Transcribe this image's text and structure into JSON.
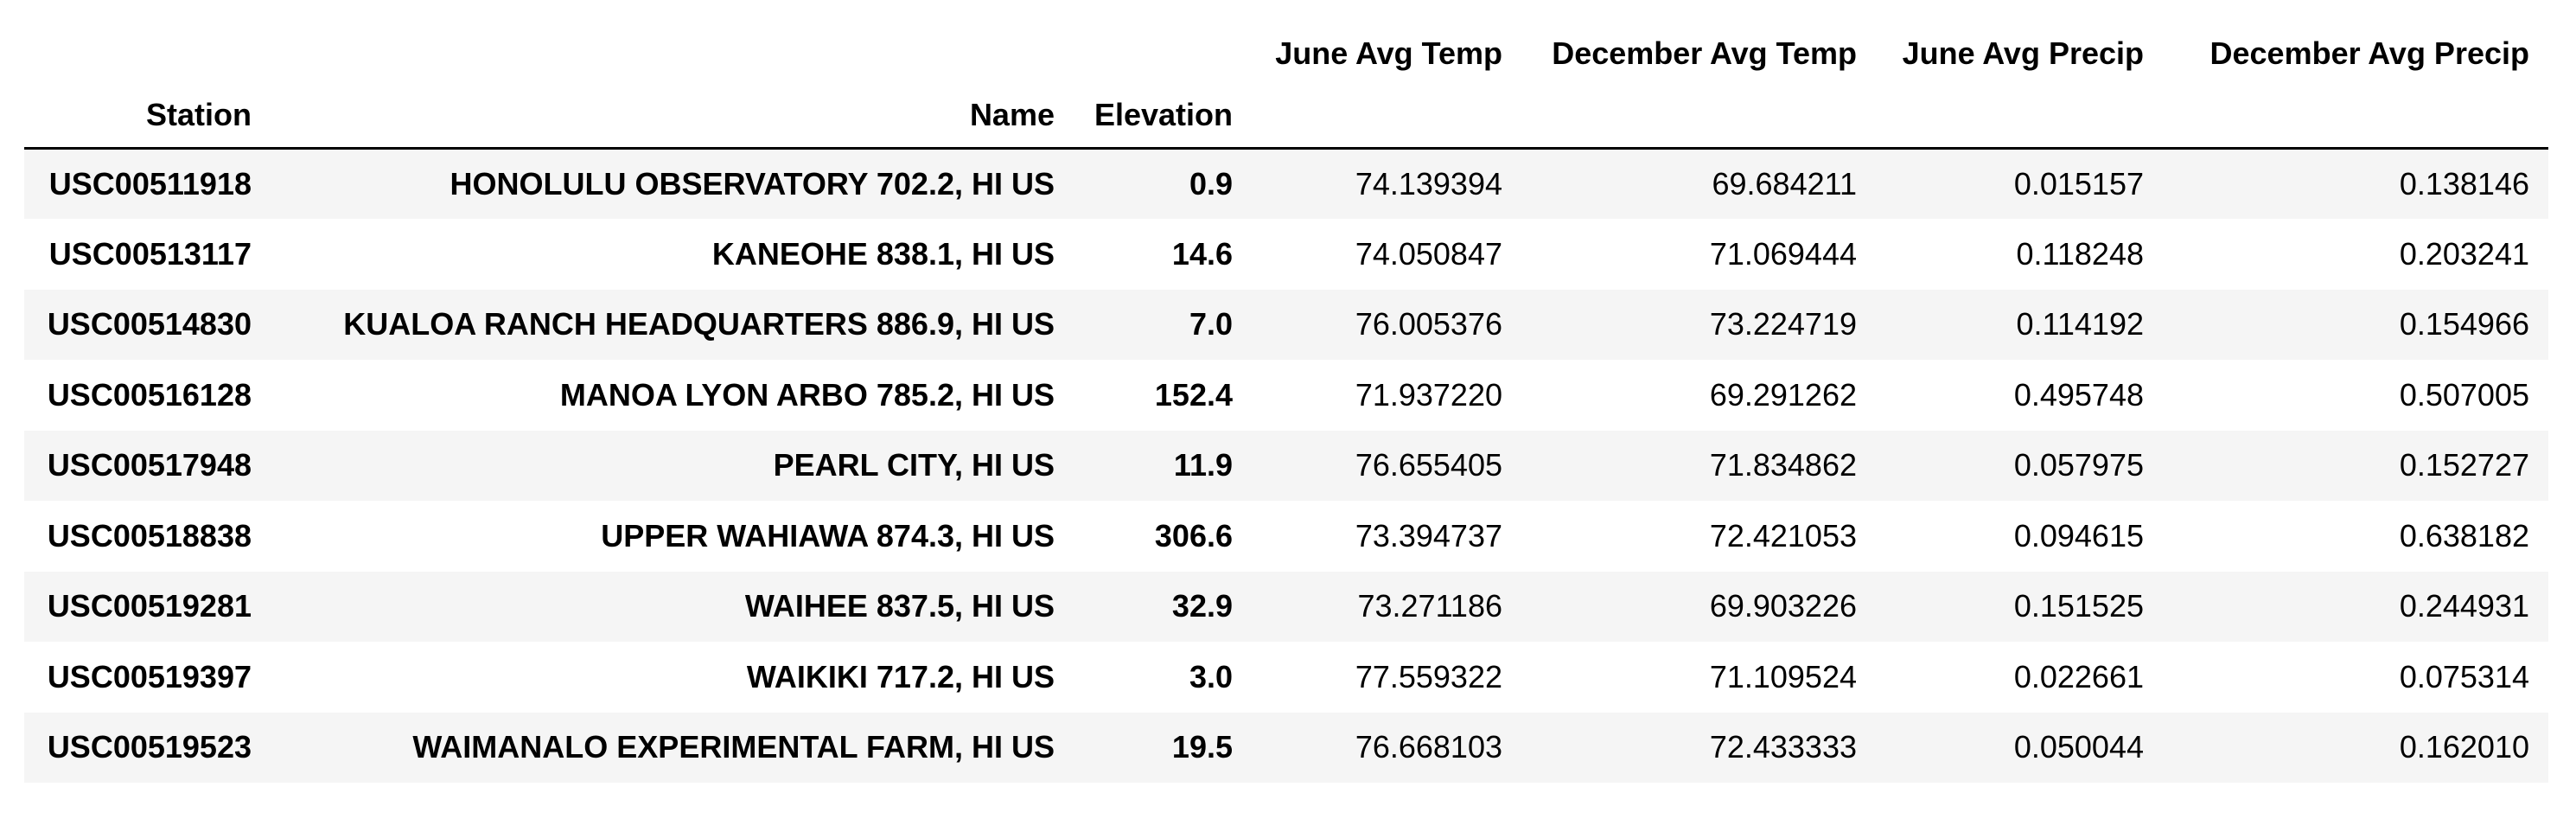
{
  "columns": {
    "top": [
      "June Avg Temp",
      "December Avg Temp",
      "June Avg Precip",
      "December Avg Precip"
    ],
    "index": [
      "Station",
      "Name",
      "Elevation"
    ]
  },
  "rows": [
    {
      "station": "USC00511918",
      "name": "HONOLULU OBSERVATORY 702.2, HI US",
      "elevation": "0.9",
      "june_temp": "74.139394",
      "dec_temp": "69.684211",
      "june_precip": "0.015157",
      "dec_precip": "0.138146"
    },
    {
      "station": "USC00513117",
      "name": "KANEOHE 838.1, HI US",
      "elevation": "14.6",
      "june_temp": "74.050847",
      "dec_temp": "71.069444",
      "june_precip": "0.118248",
      "dec_precip": "0.203241"
    },
    {
      "station": "USC00514830",
      "name": "KUALOA RANCH HEADQUARTERS 886.9, HI US",
      "elevation": "7.0",
      "june_temp": "76.005376",
      "dec_temp": "73.224719",
      "june_precip": "0.114192",
      "dec_precip": "0.154966"
    },
    {
      "station": "USC00516128",
      "name": "MANOA LYON ARBO 785.2, HI US",
      "elevation": "152.4",
      "june_temp": "71.937220",
      "dec_temp": "69.291262",
      "june_precip": "0.495748",
      "dec_precip": "0.507005"
    },
    {
      "station": "USC00517948",
      "name": "PEARL CITY, HI US",
      "elevation": "11.9",
      "june_temp": "76.655405",
      "dec_temp": "71.834862",
      "june_precip": "0.057975",
      "dec_precip": "0.152727"
    },
    {
      "station": "USC00518838",
      "name": "UPPER WAHIAWA 874.3, HI US",
      "elevation": "306.6",
      "june_temp": "73.394737",
      "dec_temp": "72.421053",
      "june_precip": "0.094615",
      "dec_precip": "0.638182"
    },
    {
      "station": "USC00519281",
      "name": "WAIHEE 837.5, HI US",
      "elevation": "32.9",
      "june_temp": "73.271186",
      "dec_temp": "69.903226",
      "june_precip": "0.151525",
      "dec_precip": "0.244931"
    },
    {
      "station": "USC00519397",
      "name": "WAIKIKI 717.2, HI US",
      "elevation": "3.0",
      "june_temp": "77.559322",
      "dec_temp": "71.109524",
      "june_precip": "0.022661",
      "dec_precip": "0.075314"
    },
    {
      "station": "USC00519523",
      "name": "WAIMANALO EXPERIMENTAL FARM, HI US",
      "elevation": "19.5",
      "june_temp": "76.668103",
      "dec_temp": "72.433333",
      "june_precip": "0.050044",
      "dec_precip": "0.162010"
    }
  ]
}
